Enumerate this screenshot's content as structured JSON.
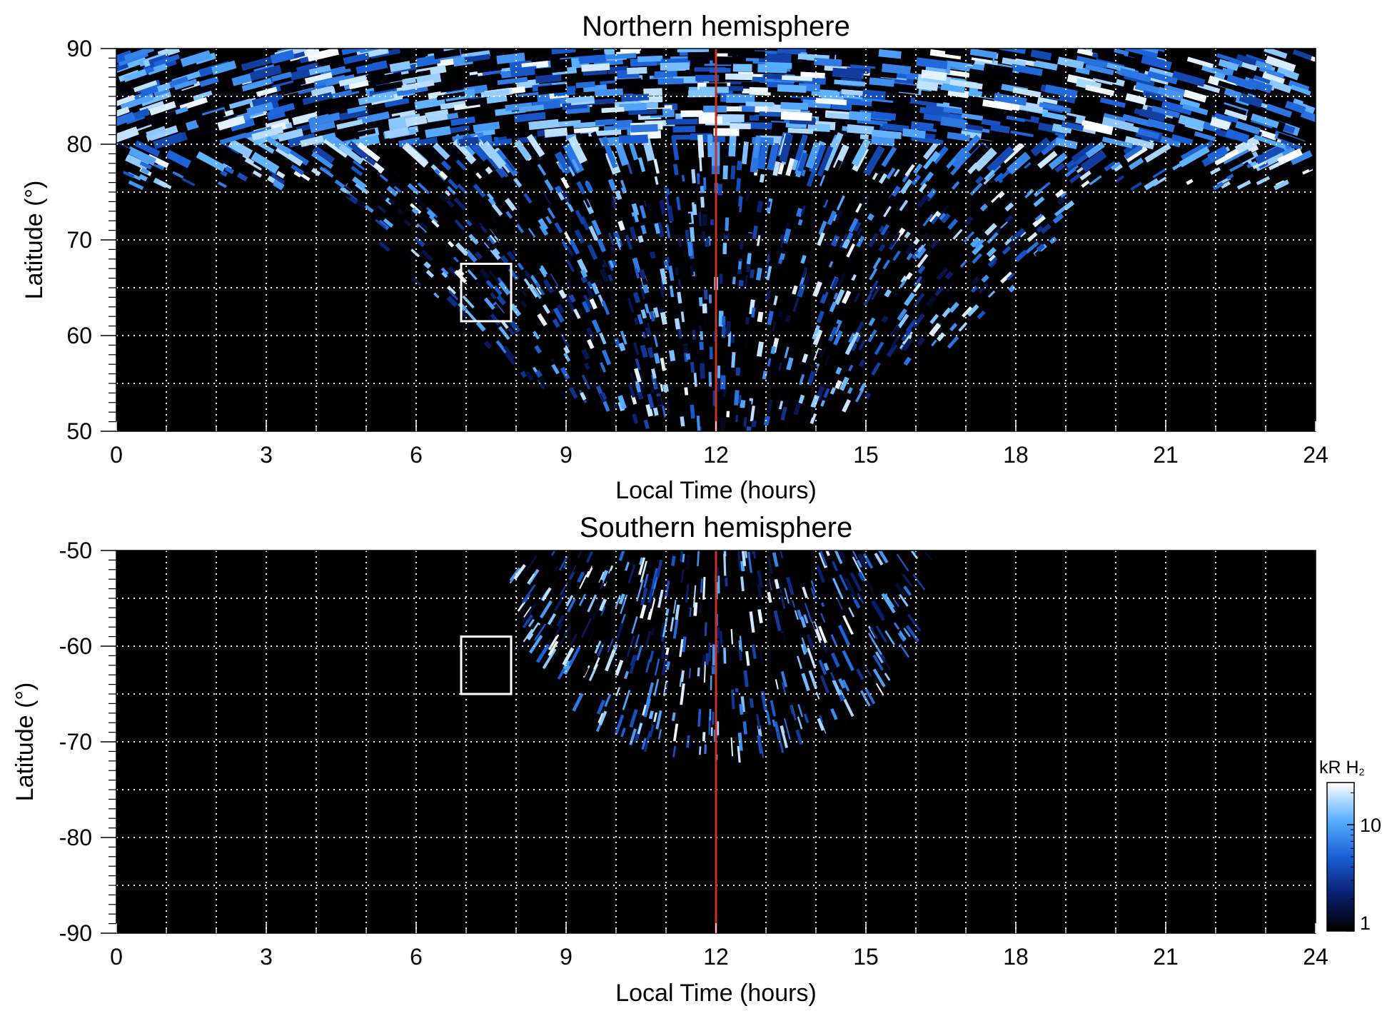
{
  "chart_data": [
    {
      "type": "heatmap",
      "title": "Northern hemisphere",
      "xlabel": "Local Time (hours)",
      "ylabel": "Latitude (°)",
      "xlim": [
        0,
        24
      ],
      "ylim": [
        50,
        90
      ],
      "x_ticks": [
        "0",
        "3",
        "6",
        "9",
        "12",
        "15",
        "18",
        "21",
        "24"
      ],
      "y_ticks": [
        "50",
        "60",
        "70",
        "80",
        "90"
      ],
      "grid": true,
      "background_color": "#000000",
      "reference_line": {
        "x": 12,
        "color": "#c8321e"
      },
      "box": {
        "x": [
          6.9,
          7.9
        ],
        "y": [
          61.5,
          67.5
        ],
        "color": "#ffffff"
      },
      "coverage": "emission over the full 0-24 h range at latitudes above ~75°, extending down to 50° between ~4.5 h and ~19.5 h local time",
      "intensity_range_kR": [
        1,
        25
      ]
    },
    {
      "type": "heatmap",
      "title": "Southern hemisphere",
      "xlabel": "Local Time (hours)",
      "ylabel": "Latitude (°)",
      "xlim": [
        0,
        24
      ],
      "ylim": [
        -90,
        -50
      ],
      "x_ticks": [
        "0",
        "3",
        "6",
        "9",
        "12",
        "15",
        "18",
        "21",
        "24"
      ],
      "y_ticks": [
        "-50",
        "-60",
        "-70",
        "-80",
        "-90"
      ],
      "grid": true,
      "background_color": "#000000",
      "reference_line": {
        "x": 12,
        "color": "#c8321e"
      },
      "box": {
        "x": [
          6.9,
          7.9
        ],
        "y": [
          -65,
          -59
        ],
        "color": "#ffffff"
      },
      "coverage": "emission between ~7.8 h and ~16.3 h local time, from -50° down to about -72° near noon",
      "intensity_range_kR": [
        1,
        25
      ]
    }
  ],
  "colorbar": {
    "label_main": "kR H",
    "label_sub": "2",
    "scale": "log",
    "ticks": [
      "1",
      "10"
    ],
    "tick_values": [
      1,
      10
    ],
    "range": [
      1,
      25
    ],
    "colors": [
      "#000000",
      "#0a1f6e",
      "#1a5fd6",
      "#5ab0ff",
      "#ffffff"
    ]
  }
}
